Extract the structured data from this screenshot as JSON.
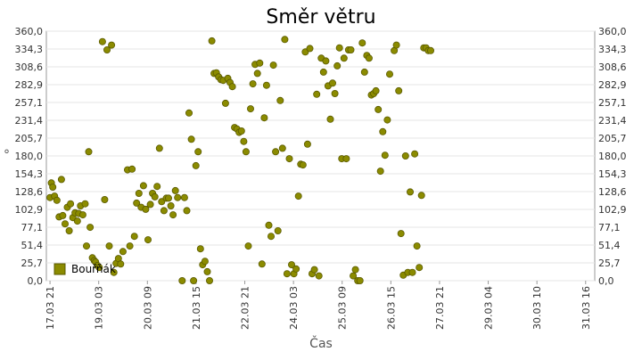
{
  "chart_data": {
    "type": "scatter",
    "title": "Směr větru",
    "xlabel": "Čas",
    "ylabel": "°",
    "ylim": [
      0,
      360
    ],
    "y_ticks": [
      "0,0",
      "25,7",
      "51,4",
      "77,1",
      "102,9",
      "128,6",
      "154,3",
      "180,0",
      "205,7",
      "231,4",
      "257,1",
      "282,9",
      "308,6",
      "334,3",
      "360,0"
    ],
    "x_ticks": [
      "17.03 21",
      "19.03 03",
      "20.03 09",
      "21.03 15",
      "22.03 21",
      "24.03 03",
      "25.03 09",
      "26.03 15",
      "27.03 21",
      "29.03 04",
      "30.03 10",
      "31.03 16"
    ],
    "x_range_ticks": [
      0,
      11.75
    ],
    "legend_position": "bottom-left",
    "grid": true,
    "colors": {
      "marker": "#8b8b00",
      "marker_edge": "#5a5a00",
      "grid": "#e6e6e6",
      "axis": "#999999"
    },
    "series": [
      {
        "name": "Bouřňák",
        "points": [
          [
            0.0,
            120
          ],
          [
            0.03,
            141
          ],
          [
            0.06,
            135
          ],
          [
            0.1,
            122
          ],
          [
            0.15,
            116
          ],
          [
            0.2,
            92
          ],
          [
            0.25,
            146
          ],
          [
            0.28,
            94
          ],
          [
            0.33,
            82
          ],
          [
            0.38,
            106
          ],
          [
            0.42,
            72
          ],
          [
            0.45,
            111
          ],
          [
            0.5,
            91
          ],
          [
            0.55,
            98
          ],
          [
            0.6,
            86
          ],
          [
            0.63,
            97
          ],
          [
            0.67,
            108
          ],
          [
            0.72,
            95
          ],
          [
            0.77,
            111
          ],
          [
            0.8,
            50
          ],
          [
            0.85,
            186
          ],
          [
            0.88,
            77
          ],
          [
            0.93,
            33
          ],
          [
            0.97,
            29
          ],
          [
            1.0,
            27
          ],
          [
            1.04,
            22
          ],
          [
            1.08,
            19
          ],
          [
            1.15,
            345
          ],
          [
            1.2,
            117
          ],
          [
            1.25,
            333
          ],
          [
            1.3,
            50
          ],
          [
            1.35,
            340
          ],
          [
            1.4,
            12
          ],
          [
            1.45,
            25
          ],
          [
            1.5,
            32
          ],
          [
            1.55,
            24
          ],
          [
            1.6,
            42
          ],
          [
            1.7,
            160
          ],
          [
            1.75,
            50
          ],
          [
            1.8,
            161
          ],
          [
            1.85,
            64
          ],
          [
            1.9,
            112
          ],
          [
            1.95,
            126
          ],
          [
            2.0,
            106
          ],
          [
            2.05,
            137
          ],
          [
            2.1,
            103
          ],
          [
            2.15,
            59
          ],
          [
            2.2,
            110
          ],
          [
            2.25,
            126
          ],
          [
            2.3,
            121
          ],
          [
            2.35,
            136
          ],
          [
            2.4,
            191
          ],
          [
            2.45,
            114
          ],
          [
            2.5,
            101
          ],
          [
            2.55,
            119
          ],
          [
            2.6,
            119
          ],
          [
            2.65,
            108
          ],
          [
            2.7,
            95
          ],
          [
            2.75,
            130
          ],
          [
            2.8,
            120
          ],
          [
            2.9,
            0
          ],
          [
            2.95,
            120
          ],
          [
            3.0,
            101
          ],
          [
            3.05,
            242
          ],
          [
            3.1,
            204
          ],
          [
            3.15,
            0
          ],
          [
            3.2,
            166
          ],
          [
            3.25,
            186
          ],
          [
            3.3,
            46
          ],
          [
            3.35,
            23
          ],
          [
            3.4,
            28
          ],
          [
            3.45,
            13
          ],
          [
            3.5,
            0
          ],
          [
            3.55,
            346
          ],
          [
            3.6,
            299
          ],
          [
            3.65,
            300
          ],
          [
            3.7,
            294
          ],
          [
            3.75,
            290
          ],
          [
            3.8,
            289
          ],
          [
            3.85,
            256
          ],
          [
            3.9,
            292
          ],
          [
            3.95,
            286
          ],
          [
            4.0,
            280
          ],
          [
            4.05,
            221
          ],
          [
            4.1,
            219
          ],
          [
            4.15,
            214
          ],
          [
            4.2,
            216
          ],
          [
            4.25,
            201
          ],
          [
            4.3,
            186
          ],
          [
            4.35,
            50
          ],
          [
            4.4,
            248
          ],
          [
            4.45,
            284
          ],
          [
            4.5,
            312
          ],
          [
            4.55,
            299
          ],
          [
            4.6,
            314
          ],
          [
            4.65,
            24
          ],
          [
            4.7,
            235
          ],
          [
            4.75,
            282
          ],
          [
            4.8,
            80
          ],
          [
            4.85,
            64
          ],
          [
            4.9,
            311
          ],
          [
            4.95,
            186
          ],
          [
            5.0,
            72
          ],
          [
            5.05,
            260
          ],
          [
            5.1,
            191
          ],
          [
            5.15,
            348
          ],
          [
            5.2,
            10
          ],
          [
            5.25,
            176
          ],
          [
            5.3,
            23
          ],
          [
            5.35,
            10
          ],
          [
            5.4,
            17
          ],
          [
            5.45,
            122
          ],
          [
            5.5,
            168
          ],
          [
            5.55,
            167
          ],
          [
            5.6,
            330
          ],
          [
            5.65,
            197
          ],
          [
            5.7,
            335
          ],
          [
            5.75,
            10
          ],
          [
            5.8,
            16
          ],
          [
            5.85,
            269
          ],
          [
            5.9,
            7
          ],
          [
            5.95,
            321
          ],
          [
            6.0,
            301
          ],
          [
            6.05,
            317
          ],
          [
            6.1,
            281
          ],
          [
            6.15,
            233
          ],
          [
            6.2,
            285
          ],
          [
            6.25,
            270
          ],
          [
            6.3,
            310
          ],
          [
            6.35,
            336
          ],
          [
            6.4,
            176
          ],
          [
            6.45,
            321
          ],
          [
            6.5,
            176
          ],
          [
            6.55,
            333
          ],
          [
            6.6,
            333
          ],
          [
            6.65,
            7
          ],
          [
            6.7,
            16
          ],
          [
            6.75,
            0
          ],
          [
            6.8,
            0
          ],
          [
            6.85,
            343
          ],
          [
            6.9,
            301
          ],
          [
            6.95,
            325
          ],
          [
            7.0,
            321
          ],
          [
            7.05,
            268
          ],
          [
            7.1,
            270
          ],
          [
            7.15,
            274
          ],
          [
            7.2,
            247
          ],
          [
            7.25,
            158
          ],
          [
            7.3,
            215
          ],
          [
            7.35,
            181
          ],
          [
            7.4,
            232
          ],
          [
            7.45,
            298
          ],
          [
            7.55,
            332
          ],
          [
            7.6,
            340
          ],
          [
            7.65,
            274
          ],
          [
            7.7,
            68
          ],
          [
            7.75,
            8
          ],
          [
            7.8,
            180
          ],
          [
            7.85,
            12
          ],
          [
            7.9,
            128
          ],
          [
            7.95,
            12
          ],
          [
            8.0,
            183
          ],
          [
            8.05,
            50
          ],
          [
            8.1,
            19
          ],
          [
            8.15,
            123
          ],
          [
            8.2,
            336
          ],
          [
            8.25,
            336
          ],
          [
            8.3,
            332
          ],
          [
            8.35,
            332
          ]
        ]
      }
    ]
  }
}
